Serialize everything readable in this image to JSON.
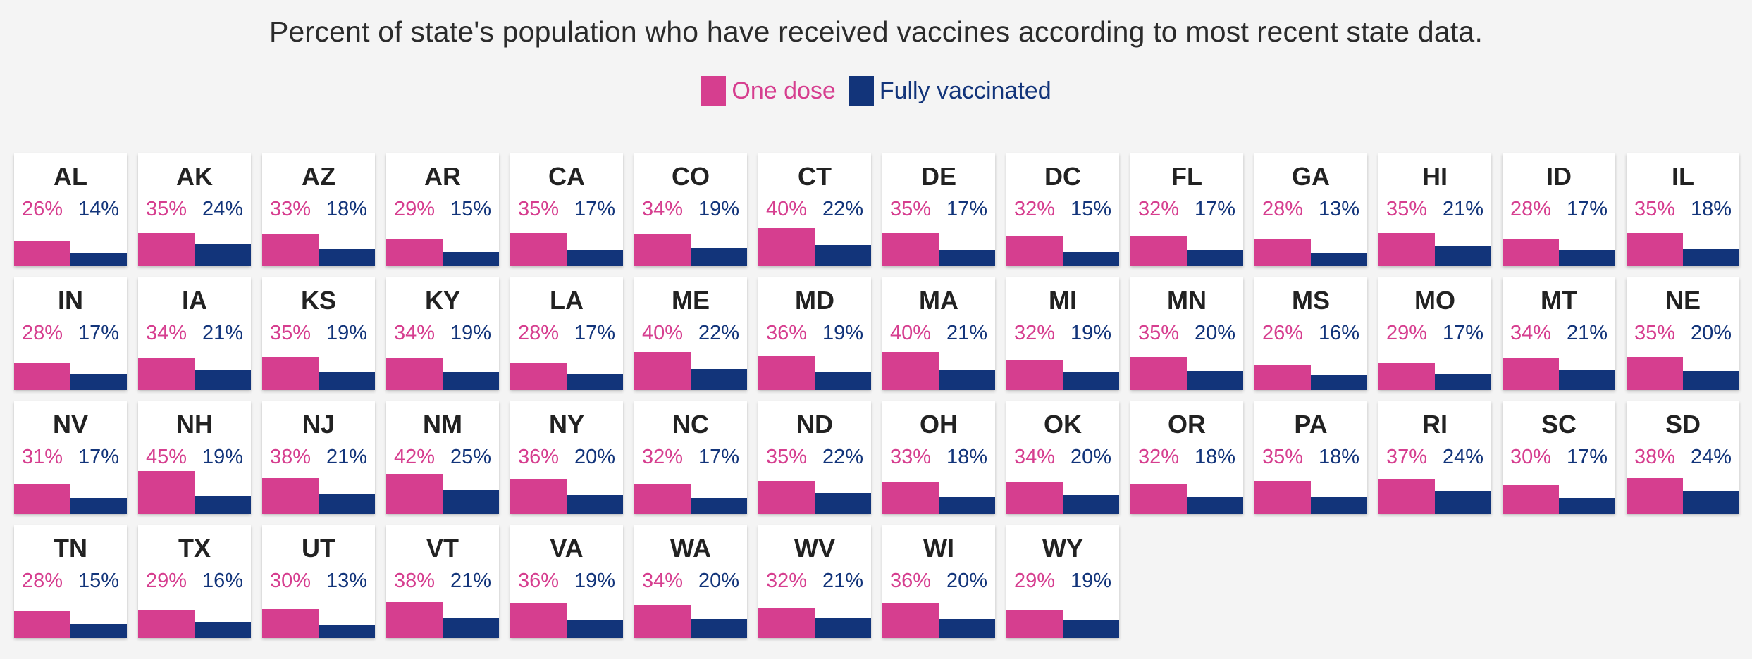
{
  "title": "Percent of state's population who have received vaccines according to most recent state data.",
  "legend": {
    "one_dose": "One dose",
    "fully": "Fully vaccinated"
  },
  "colors": {
    "one_dose": "#d63e8f",
    "fully": "#12347a",
    "background": "#f4f4f4"
  },
  "chart_data": {
    "type": "bar",
    "title": "Percent of state's population who have received vaccines according to most recent state data.",
    "series": [
      {
        "name": "One dose",
        "color": "#d63e8f"
      },
      {
        "name": "Fully vaccinated",
        "color": "#12347a"
      }
    ],
    "unit": "%",
    "states": [
      {
        "abbr": "AL",
        "one": "26%",
        "full": "14%",
        "one_v": 26,
        "full_v": 14
      },
      {
        "abbr": "AK",
        "one": "35%",
        "full": "24%",
        "one_v": 35,
        "full_v": 24
      },
      {
        "abbr": "AZ",
        "one": "33%",
        "full": "18%",
        "one_v": 33,
        "full_v": 18
      },
      {
        "abbr": "AR",
        "one": "29%",
        "full": "15%",
        "one_v": 29,
        "full_v": 15
      },
      {
        "abbr": "CA",
        "one": "35%",
        "full": "17%",
        "one_v": 35,
        "full_v": 17
      },
      {
        "abbr": "CO",
        "one": "34%",
        "full": "19%",
        "one_v": 34,
        "full_v": 19
      },
      {
        "abbr": "CT",
        "one": "40%",
        "full": "22%",
        "one_v": 40,
        "full_v": 22
      },
      {
        "abbr": "DE",
        "one": "35%",
        "full": "17%",
        "one_v": 35,
        "full_v": 17
      },
      {
        "abbr": "DC",
        "one": "32%",
        "full": "15%",
        "one_v": 32,
        "full_v": 15
      },
      {
        "abbr": "FL",
        "one": "32%",
        "full": "17%",
        "one_v": 32,
        "full_v": 17
      },
      {
        "abbr": "GA",
        "one": "28%",
        "full": "13%",
        "one_v": 28,
        "full_v": 13
      },
      {
        "abbr": "HI",
        "one": "35%",
        "full": "21%",
        "one_v": 35,
        "full_v": 21
      },
      {
        "abbr": "ID",
        "one": "28%",
        "full": "17%",
        "one_v": 28,
        "full_v": 17
      },
      {
        "abbr": "IL",
        "one": "35%",
        "full": "18%",
        "one_v": 35,
        "full_v": 18
      },
      {
        "abbr": "IN",
        "one": "28%",
        "full": "17%",
        "one_v": 28,
        "full_v": 17
      },
      {
        "abbr": "IA",
        "one": "34%",
        "full": "21%",
        "one_v": 34,
        "full_v": 21
      },
      {
        "abbr": "KS",
        "one": "35%",
        "full": "19%",
        "one_v": 35,
        "full_v": 19
      },
      {
        "abbr": "KY",
        "one": "34%",
        "full": "19%",
        "one_v": 34,
        "full_v": 19
      },
      {
        "abbr": "LA",
        "one": "28%",
        "full": "17%",
        "one_v": 28,
        "full_v": 17
      },
      {
        "abbr": "ME",
        "one": "40%",
        "full": "22%",
        "one_v": 40,
        "full_v": 22
      },
      {
        "abbr": "MD",
        "one": "36%",
        "full": "19%",
        "one_v": 36,
        "full_v": 19
      },
      {
        "abbr": "MA",
        "one": "40%",
        "full": "21%",
        "one_v": 40,
        "full_v": 21
      },
      {
        "abbr": "MI",
        "one": "32%",
        "full": "19%",
        "one_v": 32,
        "full_v": 19
      },
      {
        "abbr": "MN",
        "one": "35%",
        "full": "20%",
        "one_v": 35,
        "full_v": 20
      },
      {
        "abbr": "MS",
        "one": "26%",
        "full": "16%",
        "one_v": 26,
        "full_v": 16
      },
      {
        "abbr": "MO",
        "one": "29%",
        "full": "17%",
        "one_v": 29,
        "full_v": 17
      },
      {
        "abbr": "MT",
        "one": "34%",
        "full": "21%",
        "one_v": 34,
        "full_v": 21
      },
      {
        "abbr": "NE",
        "one": "35%",
        "full": "20%",
        "one_v": 35,
        "full_v": 20
      },
      {
        "abbr": "NV",
        "one": "31%",
        "full": "17%",
        "one_v": 31,
        "full_v": 17
      },
      {
        "abbr": "NH",
        "one": "45%",
        "full": "19%",
        "one_v": 45,
        "full_v": 19
      },
      {
        "abbr": "NJ",
        "one": "38%",
        "full": "21%",
        "one_v": 38,
        "full_v": 21
      },
      {
        "abbr": "NM",
        "one": "42%",
        "full": "25%",
        "one_v": 42,
        "full_v": 25
      },
      {
        "abbr": "NY",
        "one": "36%",
        "full": "20%",
        "one_v": 36,
        "full_v": 20
      },
      {
        "abbr": "NC",
        "one": "32%",
        "full": "17%",
        "one_v": 32,
        "full_v": 17
      },
      {
        "abbr": "ND",
        "one": "35%",
        "full": "22%",
        "one_v": 35,
        "full_v": 22
      },
      {
        "abbr": "OH",
        "one": "33%",
        "full": "18%",
        "one_v": 33,
        "full_v": 18
      },
      {
        "abbr": "OK",
        "one": "34%",
        "full": "20%",
        "one_v": 34,
        "full_v": 20
      },
      {
        "abbr": "OR",
        "one": "32%",
        "full": "18%",
        "one_v": 32,
        "full_v": 18
      },
      {
        "abbr": "PA",
        "one": "35%",
        "full": "18%",
        "one_v": 35,
        "full_v": 18
      },
      {
        "abbr": "RI",
        "one": "37%",
        "full": "24%",
        "one_v": 37,
        "full_v": 24
      },
      {
        "abbr": "SC",
        "one": "30%",
        "full": "17%",
        "one_v": 30,
        "full_v": 17
      },
      {
        "abbr": "SD",
        "one": "38%",
        "full": "24%",
        "one_v": 38,
        "full_v": 24
      },
      {
        "abbr": "TN",
        "one": "28%",
        "full": "15%",
        "one_v": 28,
        "full_v": 15
      },
      {
        "abbr": "TX",
        "one": "29%",
        "full": "16%",
        "one_v": 29,
        "full_v": 16
      },
      {
        "abbr": "UT",
        "one": "30%",
        "full": "13%",
        "one_v": 30,
        "full_v": 13
      },
      {
        "abbr": "VT",
        "one": "38%",
        "full": "21%",
        "one_v": 38,
        "full_v": 21
      },
      {
        "abbr": "VA",
        "one": "36%",
        "full": "19%",
        "one_v": 36,
        "full_v": 19
      },
      {
        "abbr": "WA",
        "one": "34%",
        "full": "20%",
        "one_v": 34,
        "full_v": 20
      },
      {
        "abbr": "WV",
        "one": "32%",
        "full": "21%",
        "one_v": 32,
        "full_v": 21
      },
      {
        "abbr": "WI",
        "one": "36%",
        "full": "20%",
        "one_v": 36,
        "full_v": 20
      },
      {
        "abbr": "WY",
        "one": "29%",
        "full": "19%",
        "one_v": 29,
        "full_v": 19
      }
    ]
  }
}
